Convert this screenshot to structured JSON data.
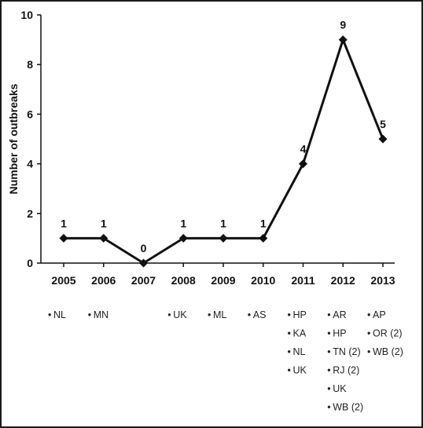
{
  "chart_data": {
    "type": "line",
    "title": "",
    "xlabel": "",
    "ylabel": "Number of outbreaks",
    "ylim": [
      0,
      10
    ],
    "yticks": [
      0,
      2,
      4,
      6,
      8,
      10
    ],
    "categories": [
      "2005",
      "2006",
      "2007",
      "2008",
      "2009",
      "2010",
      "2011",
      "2012",
      "2013"
    ],
    "series": [
      {
        "values": [
          1,
          1,
          0,
          1,
          1,
          1,
          4,
          9,
          5
        ]
      }
    ],
    "data_labels": [
      "1",
      "1",
      "0",
      "1",
      "1",
      "1",
      "4",
      "9",
      "5"
    ],
    "grid": false,
    "line_color": "#111111",
    "marker": "diamond",
    "state_lists": [
      [
        "NL"
      ],
      [
        "MN"
      ],
      [],
      [
        "UK"
      ],
      [
        "ML"
      ],
      [
        "AS"
      ],
      [
        "HP",
        "KA",
        "NL",
        "UK"
      ],
      [
        "AR",
        "HP",
        "TN (2)",
        "RJ (2)",
        "UK",
        "WB (2)"
      ],
      [
        "AP",
        "OR (2)",
        "WB (2)"
      ]
    ]
  }
}
